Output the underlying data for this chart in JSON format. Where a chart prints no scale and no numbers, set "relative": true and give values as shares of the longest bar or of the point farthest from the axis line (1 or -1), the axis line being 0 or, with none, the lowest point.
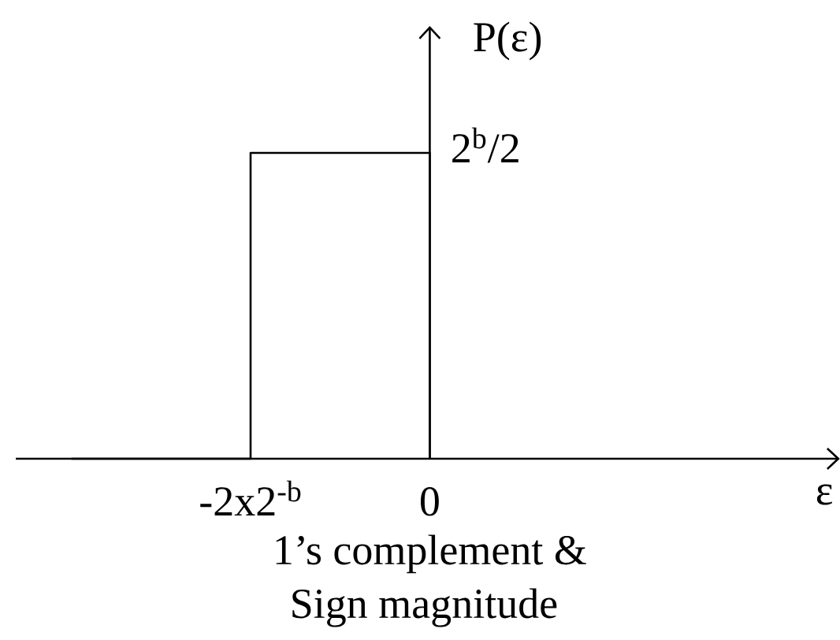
{
  "chart_data": {
    "type": "step",
    "ylabel": "P(ε)",
    "categories": [
      null,
      "-2x2$^{-b}$",
      "0"
    ],
    "values": [
      0,
      1,
      0
    ],
    "color": "#000000",
    "relative": true,
    "annotations": [
      "2$^{b}$/2",
      "1’s complement & Sign magnitude",
      "ε"
    ]
  }
}
